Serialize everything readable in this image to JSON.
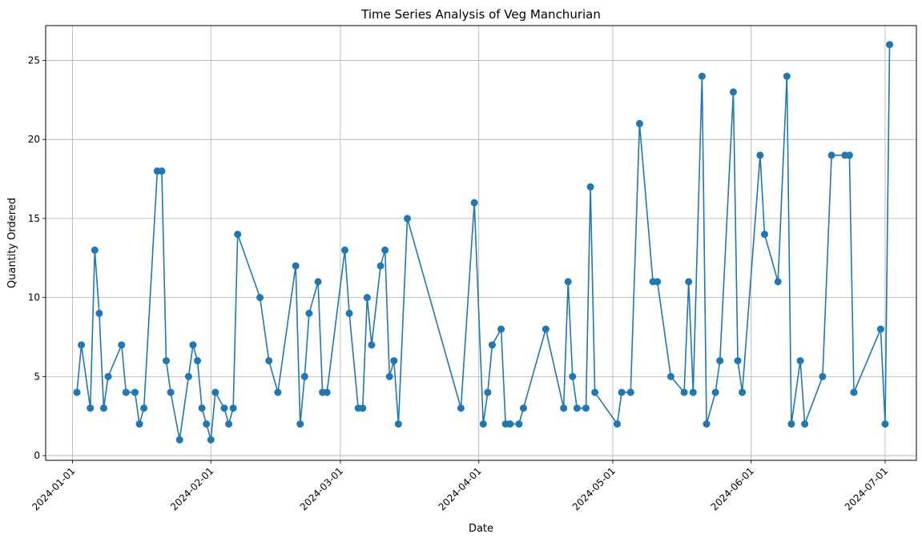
{
  "chart_data": {
    "type": "line",
    "title": "Time Series Analysis of Veg Manchurian",
    "xlabel": "Date",
    "ylabel": "Quantity Ordered",
    "x_axis_type": "date",
    "xlim": [
      "2023-12-26",
      "2024-07-08"
    ],
    "ylim": [
      -0.3,
      27.2
    ],
    "x_ticks": [
      "2024-01-01",
      "2024-02-01",
      "2024-03-01",
      "2024-04-01",
      "2024-05-01",
      "2024-06-01",
      "2024-07-01"
    ],
    "y_ticks": [
      0,
      5,
      10,
      15,
      20,
      25
    ],
    "grid": true,
    "marker": "circle",
    "color": "#1f77b4",
    "series": [
      {
        "points": [
          [
            "2024-01-02",
            4
          ],
          [
            "2024-01-03",
            7
          ],
          [
            "2024-01-05",
            3
          ],
          [
            "2024-01-06",
            13
          ],
          [
            "2024-01-07",
            9
          ],
          [
            "2024-01-08",
            3
          ],
          [
            "2024-01-09",
            5
          ],
          [
            "2024-01-12",
            7
          ],
          [
            "2024-01-13",
            4
          ],
          [
            "2024-01-15",
            4
          ],
          [
            "2024-01-16",
            2
          ],
          [
            "2024-01-17",
            3
          ],
          [
            "2024-01-20",
            18
          ],
          [
            "2024-01-21",
            18
          ],
          [
            "2024-01-22",
            6
          ],
          [
            "2024-01-23",
            4
          ],
          [
            "2024-01-25",
            1
          ],
          [
            "2024-01-27",
            5
          ],
          [
            "2024-01-28",
            7
          ],
          [
            "2024-01-29",
            6
          ],
          [
            "2024-01-30",
            3
          ],
          [
            "2024-01-31",
            2
          ],
          [
            "2024-02-01",
            1
          ],
          [
            "2024-02-02",
            4
          ],
          [
            "2024-02-04",
            3
          ],
          [
            "2024-02-05",
            2
          ],
          [
            "2024-02-06",
            3
          ],
          [
            "2024-02-07",
            14
          ],
          [
            "2024-02-12",
            10
          ],
          [
            "2024-02-14",
            6
          ],
          [
            "2024-02-16",
            4
          ],
          [
            "2024-02-20",
            12
          ],
          [
            "2024-02-21",
            2
          ],
          [
            "2024-02-22",
            5
          ],
          [
            "2024-02-23",
            9
          ],
          [
            "2024-02-25",
            11
          ],
          [
            "2024-02-26",
            4
          ],
          [
            "2024-02-27",
            4
          ],
          [
            "2024-03-02",
            13
          ],
          [
            "2024-03-03",
            9
          ],
          [
            "2024-03-05",
            3
          ],
          [
            "2024-03-06",
            3
          ],
          [
            "2024-03-07",
            10
          ],
          [
            "2024-03-08",
            7
          ],
          [
            "2024-03-10",
            12
          ],
          [
            "2024-03-11",
            13
          ],
          [
            "2024-03-12",
            5
          ],
          [
            "2024-03-13",
            6
          ],
          [
            "2024-03-14",
            2
          ],
          [
            "2024-03-16",
            15
          ],
          [
            "2024-03-28",
            3
          ],
          [
            "2024-03-31",
            16
          ],
          [
            "2024-04-02",
            2
          ],
          [
            "2024-04-03",
            4
          ],
          [
            "2024-04-04",
            7
          ],
          [
            "2024-04-06",
            8
          ],
          [
            "2024-04-07",
            2
          ],
          [
            "2024-04-08",
            2
          ],
          [
            "2024-04-10",
            2
          ],
          [
            "2024-04-11",
            3
          ],
          [
            "2024-04-16",
            8
          ],
          [
            "2024-04-20",
            3
          ],
          [
            "2024-04-21",
            11
          ],
          [
            "2024-04-22",
            5
          ],
          [
            "2024-04-23",
            3
          ],
          [
            "2024-04-25",
            3
          ],
          [
            "2024-04-26",
            17
          ],
          [
            "2024-04-27",
            4
          ],
          [
            "2024-05-02",
            2
          ],
          [
            "2024-05-03",
            4
          ],
          [
            "2024-05-05",
            4
          ],
          [
            "2024-05-07",
            21
          ],
          [
            "2024-05-10",
            11
          ],
          [
            "2024-05-11",
            11
          ],
          [
            "2024-05-14",
            5
          ],
          [
            "2024-05-17",
            4
          ],
          [
            "2024-05-18",
            11
          ],
          [
            "2024-05-19",
            4
          ],
          [
            "2024-05-21",
            24
          ],
          [
            "2024-05-22",
            2
          ],
          [
            "2024-05-24",
            4
          ],
          [
            "2024-05-25",
            6
          ],
          [
            "2024-05-28",
            23
          ],
          [
            "2024-05-29",
            6
          ],
          [
            "2024-05-30",
            4
          ],
          [
            "2024-06-03",
            19
          ],
          [
            "2024-06-04",
            14
          ],
          [
            "2024-06-07",
            11
          ],
          [
            "2024-06-09",
            24
          ],
          [
            "2024-06-10",
            2
          ],
          [
            "2024-06-12",
            6
          ],
          [
            "2024-06-13",
            2
          ],
          [
            "2024-06-17",
            5
          ],
          [
            "2024-06-19",
            19
          ],
          [
            "2024-06-22",
            19
          ],
          [
            "2024-06-23",
            19
          ],
          [
            "2024-06-24",
            4
          ],
          [
            "2024-06-30",
            8
          ],
          [
            "2024-07-01",
            2
          ],
          [
            "2024-07-02",
            26
          ]
        ]
      }
    ]
  }
}
